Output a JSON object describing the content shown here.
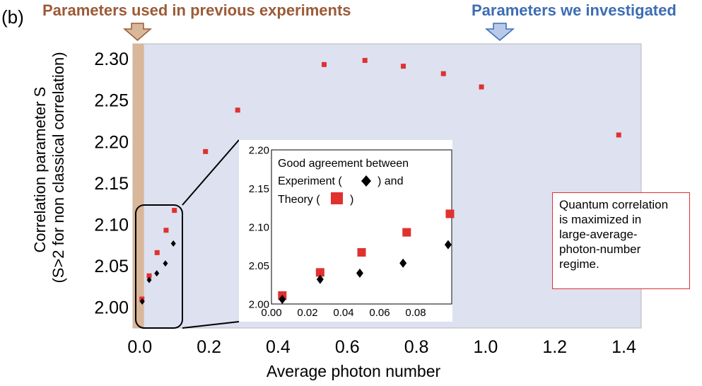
{
  "panel_label": "(b)",
  "header": {
    "left_label": "Parameters used in previous experiments",
    "right_label": "Parameters we investigated",
    "left_color": "#9c5a37",
    "right_color": "#3d6db3",
    "left_arrow_color": "#d9b79a",
    "right_arrow_color": "#b9c9ea"
  },
  "note": "Quantum correlation\nis maximized in\nlarge-average-\nphoton-number\nregime.",
  "colors": {
    "plot_background": "#dde1f0",
    "previous_region": "#d9b79a",
    "theory": "#e0312f",
    "experiment": "#000000",
    "note_border": "#e0312f"
  },
  "chart_data": [
    {
      "type": "scatter",
      "xlabel": "Average photon number",
      "ylabel": "Correlation parameter S\n(S>2 for non classical correlation)",
      "xlim": [
        -0.02,
        1.45
      ],
      "ylim": [
        1.975,
        2.318
      ],
      "x_ticks": [
        "0.0",
        "0.2",
        "0.4",
        "0.6",
        "0.8",
        "1.0",
        "1.2",
        "1.4"
      ],
      "y_ticks": [
        "2.00",
        "2.05",
        "2.10",
        "2.15",
        "2.20",
        "2.25",
        "2.30"
      ],
      "grid": false,
      "previous_region_x": [
        -0.02,
        0.012
      ],
      "series": [
        {
          "marker": "square",
          "x": [
            0.006,
            0.027,
            0.05,
            0.076,
            0.1,
            0.19,
            0.283,
            0.533,
            0.651,
            0.762,
            0.878,
            0.988,
            1.385
          ],
          "y": [
            2.01,
            2.038,
            2.066,
            2.093,
            2.117,
            2.188,
            2.238,
            2.293,
            2.298,
            2.291,
            2.282,
            2.266,
            2.208
          ]
        },
        {
          "marker": "diamond",
          "x": [
            0.007,
            0.027,
            0.049,
            0.074,
            0.097
          ],
          "y": [
            2.007,
            2.033,
            2.041,
            2.053,
            2.077
          ]
        }
      ]
    },
    {
      "type": "scatter",
      "xlim": [
        0.0,
        0.1
      ],
      "ylim": [
        2.0,
        2.2
      ],
      "x_ticks": [
        "0.00",
        "0.02",
        "0.04",
        "0.06",
        "0.08"
      ],
      "y_ticks": [
        "2.00",
        "2.05",
        "2.10",
        "2.15",
        "2.20"
      ],
      "grid": false,
      "legend_text": {
        "line1": "Good agreement between",
        "line2_before": "Experiment ( ",
        "line2_after": " ) and",
        "line3_before": "Theory ( ",
        "line3_after": " )"
      },
      "series": [
        {
          "marker": "square",
          "x": [
            0.006,
            0.027,
            0.05,
            0.075,
            0.099
          ],
          "y": [
            2.011,
            2.041,
            2.067,
            2.093,
            2.117
          ]
        },
        {
          "marker": "diamond",
          "x": [
            0.006,
            0.027,
            0.049,
            0.073,
            0.098
          ],
          "y": [
            2.006,
            2.032,
            2.04,
            2.053,
            2.077
          ]
        }
      ]
    }
  ]
}
